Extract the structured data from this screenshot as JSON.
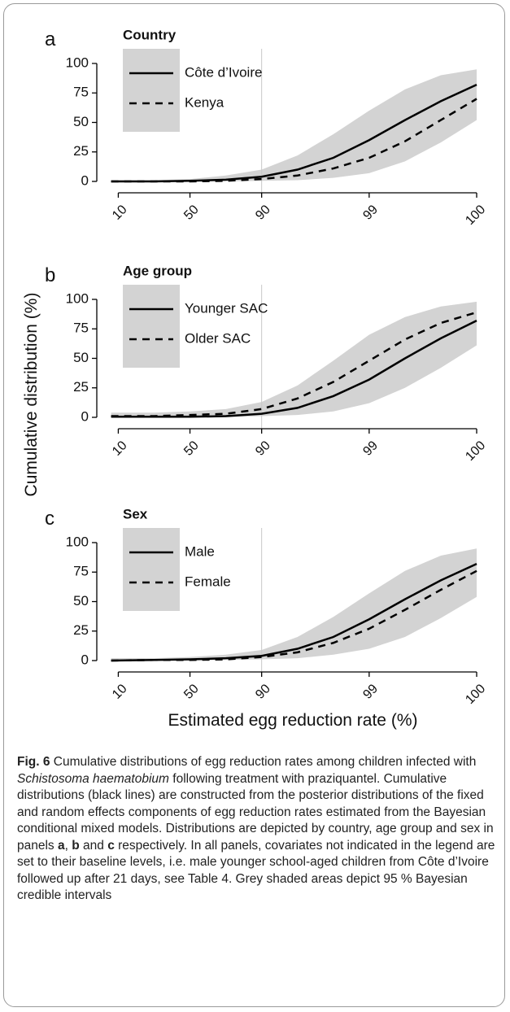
{
  "chart_data": [
    {
      "type": "line",
      "label": "a",
      "legend_title": "Country",
      "x": [
        0.9,
        1.5,
        2,
        2.5,
        3,
        3.5,
        4,
        4.5,
        5,
        5.5,
        6
      ],
      "series": [
        {
          "name": "Côte d’Ivoire",
          "color": "#000000",
          "dash": false,
          "values": [
            0,
            0,
            0.5,
            1.5,
            4,
            10,
            20,
            35,
            52,
            68,
            82
          ]
        },
        {
          "name": "Kenya",
          "color": "#000000",
          "dash": true,
          "values": [
            0,
            0,
            0,
            0.5,
            2,
            5,
            11,
            20,
            34,
            52,
            70
          ]
        }
      ],
      "band": {
        "color": "#d3d3d3",
        "lower": [
          0,
          0,
          0,
          0,
          0.5,
          1,
          3,
          7,
          17,
          33,
          52
        ],
        "upper": [
          1,
          1,
          2,
          5,
          10,
          22,
          40,
          60,
          78,
          90,
          95
        ]
      },
      "xlim": [
        0.7,
        6.17
      ],
      "xticks": [
        {
          "value": 1,
          "label": "10"
        },
        {
          "value": 2,
          "label": "50"
        },
        {
          "value": 3,
          "label": "90"
        },
        {
          "value": 4.5,
          "label": "99"
        },
        {
          "value": 6,
          "label": "100"
        }
      ],
      "ylim": [
        0,
        100
      ],
      "yticks": [
        0,
        25,
        50,
        75,
        100
      ],
      "vline": 3
    },
    {
      "type": "line",
      "label": "b",
      "legend_title": "Age group",
      "x": [
        0.9,
        1.5,
        2,
        2.5,
        3,
        3.5,
        4,
        4.5,
        5,
        5.5,
        6
      ],
      "series": [
        {
          "name": "Younger SAC",
          "color": "#000000",
          "dash": false,
          "values": [
            0.5,
            0.5,
            0.5,
            1,
            3,
            8,
            18,
            32,
            50,
            67,
            82
          ]
        },
        {
          "name": "Older SAC",
          "color": "#000000",
          "dash": true,
          "values": [
            1,
            1,
            2,
            3,
            7,
            16,
            30,
            48,
            66,
            80,
            89
          ]
        }
      ],
      "band": {
        "color": "#d3d3d3",
        "lower": [
          0,
          0,
          0,
          0,
          1,
          2,
          5,
          12,
          25,
          42,
          61
        ],
        "upper": [
          4,
          4,
          5,
          7,
          13,
          27,
          48,
          70,
          85,
          94,
          98
        ]
      },
      "xlim": [
        0.7,
        6.17
      ],
      "xticks": [
        {
          "value": 1,
          "label": "10"
        },
        {
          "value": 2,
          "label": "50"
        },
        {
          "value": 3,
          "label": "90"
        },
        {
          "value": 4.5,
          "label": "99"
        },
        {
          "value": 6,
          "label": "100"
        }
      ],
      "ylim": [
        0,
        100
      ],
      "yticks": [
        0,
        25,
        50,
        75,
        100
      ],
      "vline": 3
    },
    {
      "type": "line",
      "label": "c",
      "legend_title": "Sex",
      "x": [
        0.9,
        1.5,
        2,
        2.5,
        3,
        3.5,
        4,
        4.5,
        5,
        5.5,
        6
      ],
      "series": [
        {
          "name": "Male",
          "color": "#000000",
          "dash": false,
          "values": [
            0,
            0.5,
            1,
            2,
            4,
            10,
            20,
            35,
            52,
            68,
            82
          ]
        },
        {
          "name": "Female",
          "color": "#000000",
          "dash": true,
          "values": [
            0,
            0.5,
            0.5,
            1,
            3,
            7,
            15,
            27,
            43,
            60,
            76
          ]
        }
      ],
      "band": {
        "color": "#d3d3d3",
        "lower": [
          0,
          0,
          0,
          0.5,
          1,
          2,
          5,
          10,
          20,
          36,
          54
        ],
        "upper": [
          2,
          2,
          3,
          5,
          9,
          20,
          37,
          57,
          76,
          89,
          95
        ]
      },
      "xlim": [
        0.7,
        6.17
      ],
      "xticks": [
        {
          "value": 1,
          "label": "10"
        },
        {
          "value": 2,
          "label": "50"
        },
        {
          "value": 3,
          "label": "90"
        },
        {
          "value": 4.5,
          "label": "99"
        },
        {
          "value": 6,
          "label": "100"
        }
      ],
      "ylim": [
        0,
        100
      ],
      "yticks": [
        0,
        25,
        50,
        75,
        100
      ],
      "vline": 3
    }
  ],
  "y_label": "Cumulative distribution (%)",
  "x_label": "Estimated egg reduction rate (%)",
  "caption": [
    {
      "text": "Fig. 6",
      "style": "bold"
    },
    {
      "text": " Cumulative distributions of egg reduction rates among children infected with ",
      "style": "normal"
    },
    {
      "text": "Schistosoma haematobium",
      "style": "italic"
    },
    {
      "text": " following treatment with praziquantel. Cumulative distributions (black lines) are constructed from the posterior distributions of the fixed and random effects components of egg reduction rates estimated from the Bayesian conditional mixed models. Distributions are depicted by country, age group and sex in panels ",
      "style": "normal"
    },
    {
      "text": "a",
      "style": "bold"
    },
    {
      "text": ", ",
      "style": "normal"
    },
    {
      "text": "b",
      "style": "bold"
    },
    {
      "text": " and ",
      "style": "normal"
    },
    {
      "text": "c",
      "style": "bold"
    },
    {
      "text": " respectively. In all panels, covariates not indicated in the legend are set to their baseline levels, i.e. male younger school-aged children from Côte d’Ivoire followed up after 21 days, see Table 4. Grey shaded areas depict 95 % Bayesian credible intervals",
      "style": "normal"
    }
  ]
}
